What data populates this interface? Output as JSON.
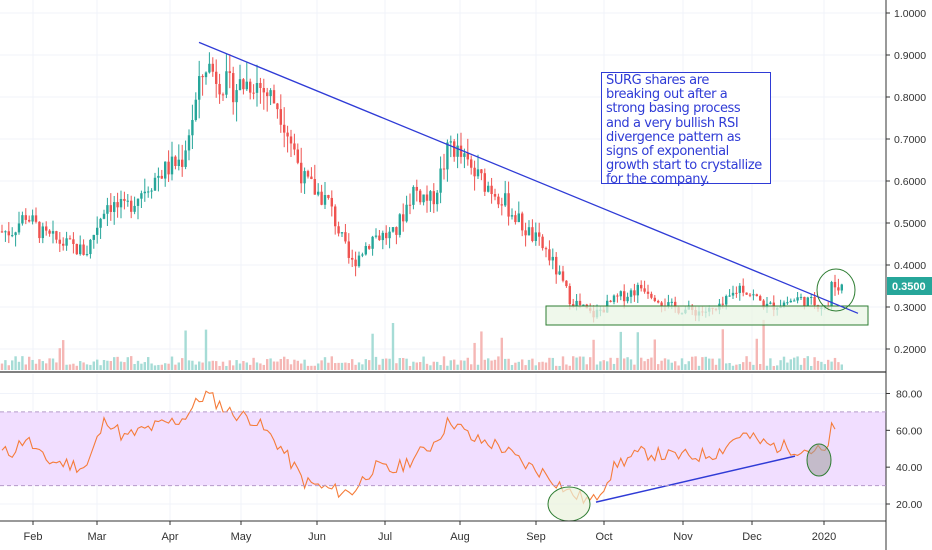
{
  "chart_data": [
    {
      "type": "candlestick",
      "title": "",
      "price_axis": {
        "ticks": [
          1.0,
          0.9,
          0.8,
          0.7,
          0.6,
          0.5,
          0.4,
          0.3,
          0.2
        ],
        "tick_labels": [
          "1.0000",
          "0.9000",
          "0.8000",
          "0.7000",
          "0.6000",
          "0.5000",
          "0.4000",
          "0.3000",
          "0.2000"
        ],
        "range": [
          0.15,
          1.03
        ]
      },
      "time_axis": {
        "labels": [
          "Feb",
          "Mar",
          "Apr",
          "May",
          "Jun",
          "Jul",
          "Aug",
          "Sep",
          "Oct",
          "Nov",
          "Dec",
          "2020"
        ]
      },
      "last_price": {
        "value": 0.35,
        "label": "0.3500",
        "color": "#26a69a"
      },
      "price_series": [
        {
          "m": "Jan",
          "v": 0.48
        },
        {
          "m": "Jan",
          "v": 0.52
        },
        {
          "m": "Feb",
          "v": 0.47
        },
        {
          "m": "Feb",
          "v": 0.45
        },
        {
          "m": "Feb",
          "v": 0.43
        },
        {
          "m": "Mar",
          "v": 0.55
        },
        {
          "m": "Mar",
          "v": 0.53
        },
        {
          "m": "Mar",
          "v": 0.58
        },
        {
          "m": "Mar",
          "v": 0.62
        },
        {
          "m": "Apr",
          "v": 0.65
        },
        {
          "m": "Apr",
          "v": 0.88
        },
        {
          "m": "Apr",
          "v": 0.82
        },
        {
          "m": "May",
          "v": 0.84
        },
        {
          "m": "May",
          "v": 0.78
        },
        {
          "m": "May",
          "v": 0.6
        },
        {
          "m": "Jun",
          "v": 0.55
        },
        {
          "m": "Jun",
          "v": 0.4
        },
        {
          "m": "Jun",
          "v": 0.47
        },
        {
          "m": "Jul",
          "v": 0.47
        },
        {
          "m": "Jul",
          "v": 0.58
        },
        {
          "m": "Jul",
          "v": 0.55
        },
        {
          "m": "Jul",
          "v": 0.69
        },
        {
          "m": "Aug",
          "v": 0.62
        },
        {
          "m": "Aug",
          "v": 0.57
        },
        {
          "m": "Aug",
          "v": 0.49
        },
        {
          "m": "Sep",
          "v": 0.43
        },
        {
          "m": "Sep",
          "v": 0.32
        },
        {
          "m": "Sep",
          "v": 0.28
        },
        {
          "m": "Oct",
          "v": 0.32
        },
        {
          "m": "Oct",
          "v": 0.35
        },
        {
          "m": "Oct",
          "v": 0.3
        },
        {
          "m": "Nov",
          "v": 0.29
        },
        {
          "m": "Nov",
          "v": 0.29
        },
        {
          "m": "Nov",
          "v": 0.35
        },
        {
          "m": "Dec",
          "v": 0.3
        },
        {
          "m": "Dec",
          "v": 0.32
        },
        {
          "m": "Dec",
          "v": 0.3
        },
        {
          "m": "2020",
          "v": 0.3
        },
        {
          "m": "2020",
          "v": 0.35
        }
      ],
      "annotation": "SURG shares are breaking out after a strong basing process and a very bullish RSI divergence pattern as signs of exponential growth start to crystallize for the company.",
      "colors": {
        "up": "#26a69a",
        "down": "#ef5350",
        "trendline": "#2f3bd6",
        "box_fill": "#e9f5e4",
        "box_stroke": "#2e7d32"
      }
    },
    {
      "type": "line",
      "indicator": "RSI",
      "rsi_axis": {
        "ticks": [
          80,
          60,
          40,
          20
        ],
        "tick_labels": [
          "80.00",
          "60.00",
          "40.00",
          "20.00"
        ],
        "range": [
          12,
          90
        ]
      },
      "band": {
        "upper": 70,
        "lower": 30,
        "fill": "#f1deff"
      },
      "rsi_series": [
        {
          "m": "Jan",
          "v": 48
        },
        {
          "m": "Jan",
          "v": 56
        },
        {
          "m": "Feb",
          "v": 44
        },
        {
          "m": "Feb",
          "v": 42
        },
        {
          "m": "Feb",
          "v": 40
        },
        {
          "m": "Mar",
          "v": 67
        },
        {
          "m": "Mar",
          "v": 56
        },
        {
          "m": "Mar",
          "v": 60
        },
        {
          "m": "Mar",
          "v": 63
        },
        {
          "m": "Apr",
          "v": 66
        },
        {
          "m": "Apr",
          "v": 80
        },
        {
          "m": "Apr",
          "v": 70
        },
        {
          "m": "May",
          "v": 66
        },
        {
          "m": "May",
          "v": 52
        },
        {
          "m": "May",
          "v": 32
        },
        {
          "m": "Jun",
          "v": 28
        },
        {
          "m": "Jun",
          "v": 26
        },
        {
          "m": "Jun",
          "v": 40
        },
        {
          "m": "Jul",
          "v": 38
        },
        {
          "m": "Jul",
          "v": 45
        },
        {
          "m": "Jul",
          "v": 52
        },
        {
          "m": "Jul",
          "v": 66
        },
        {
          "m": "Aug",
          "v": 55
        },
        {
          "m": "Aug",
          "v": 52
        },
        {
          "m": "Aug",
          "v": 42
        },
        {
          "m": "Sep",
          "v": 36
        },
        {
          "m": "Sep",
          "v": 26
        },
        {
          "m": "Sep",
          "v": 21
        },
        {
          "m": "Oct",
          "v": 42
        },
        {
          "m": "Oct",
          "v": 48
        },
        {
          "m": "Oct",
          "v": 46
        },
        {
          "m": "Nov",
          "v": 46
        },
        {
          "m": "Nov",
          "v": 48
        },
        {
          "m": "Nov",
          "v": 58
        },
        {
          "m": "Dec",
          "v": 52
        },
        {
          "m": "Dec",
          "v": 50
        },
        {
          "m": "Dec",
          "v": 48
        },
        {
          "m": "2020",
          "v": 47
        },
        {
          "m": "2020",
          "v": 63
        }
      ],
      "colors": {
        "line": "#f57c3a",
        "divergence": "#2f3bd6"
      }
    }
  ]
}
